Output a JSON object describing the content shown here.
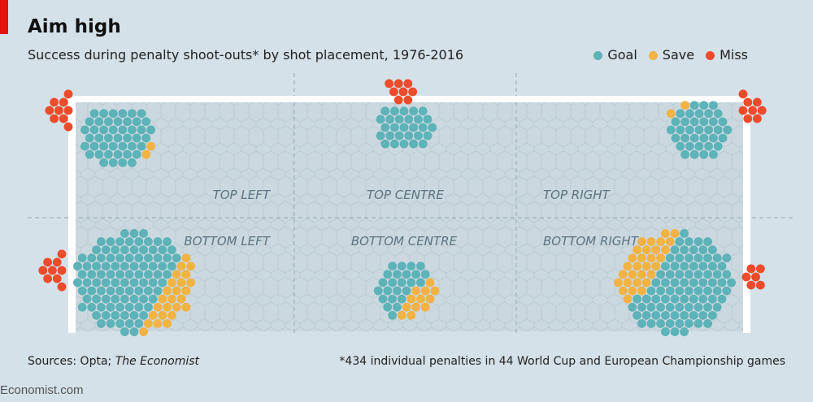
{
  "title": "Aim high",
  "subtitle": "Success during penalty shoot-outs* by shot placement, 1976-2016",
  "legend": [
    {
      "label": "Goal",
      "color": "#5cb3b8"
    },
    {
      "label": "Save",
      "color": "#f2b343"
    },
    {
      "label": "Miss",
      "color": "#ee4b2b"
    }
  ],
  "source_prefix": "Sources: Opta; ",
  "source_italic": "The Economist",
  "footnote": "*434 individual penalties in 44 World Cup and European Championship games",
  "brand": "Economist.com",
  "chart_data": {
    "type": "dot-cluster",
    "title": "Aim high",
    "total": 434,
    "zones": [
      {
        "label": "TOP LEFT",
        "goal": 45,
        "save": 2,
        "miss": 9
      },
      {
        "label": "TOP CENTRE",
        "goal": 28,
        "save": 0,
        "miss": 8
      },
      {
        "label": "TOP RIGHT",
        "goal": 36,
        "save": 2,
        "miss": 8
      },
      {
        "label": "BOTTOM LEFT",
        "goal": 100,
        "save": 25,
        "miss": 9
      },
      {
        "label": "BOTTOM CENTRE",
        "goal": 24,
        "save": 12,
        "miss": 0
      },
      {
        "label": "BOTTOM RIGHT",
        "goal": 90,
        "save": 30,
        "miss": 6
      }
    ]
  }
}
